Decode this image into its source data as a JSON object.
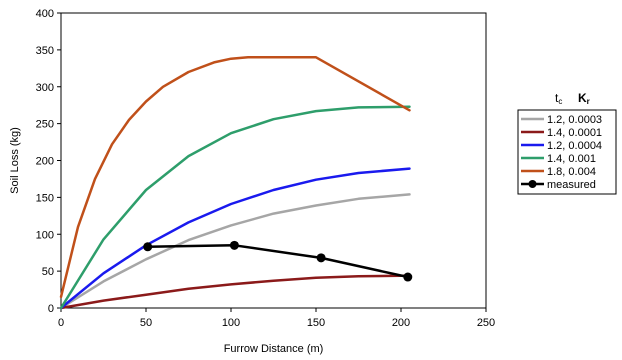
{
  "chart_data": {
    "type": "line",
    "xlabel": "Furrow Distance (m)",
    "ylabel": "Soil Loss (kg)",
    "xlim": [
      0,
      250
    ],
    "ylim": [
      0,
      400
    ],
    "xticks": [
      0,
      50,
      100,
      150,
      200,
      250
    ],
    "yticks": [
      0,
      50,
      100,
      150,
      200,
      250,
      300,
      350,
      400
    ],
    "grid": false,
    "legend_position": "right",
    "legend_header": [
      "t",
      "c",
      "K",
      "r"
    ],
    "series": [
      {
        "name": "1.2, 0.0003",
        "color": "#a6a6a6",
        "x": [
          0,
          25,
          50,
          75,
          100,
          125,
          150,
          175,
          205
        ],
        "y": [
          0,
          36,
          66,
          92,
          112,
          128,
          139,
          148,
          154
        ]
      },
      {
        "name": "1.4, 0.0001",
        "color": "#8b1a1a",
        "x": [
          0,
          25,
          50,
          75,
          100,
          125,
          150,
          175,
          205
        ],
        "y": [
          0,
          10,
          18,
          26,
          32,
          37,
          41,
          43,
          44
        ]
      },
      {
        "name": "1.2, 0.0004",
        "color": "#1a1aee",
        "x": [
          0,
          25,
          50,
          75,
          100,
          125,
          150,
          175,
          205
        ],
        "y": [
          0,
          47,
          85,
          116,
          141,
          160,
          174,
          183,
          189
        ]
      },
      {
        "name": "1.4, 0.001",
        "color": "#2e9e6b",
        "x": [
          0,
          25,
          50,
          75,
          100,
          125,
          150,
          175,
          205
        ],
        "y": [
          0,
          93,
          160,
          206,
          237,
          256,
          267,
          272,
          273
        ]
      },
      {
        "name": "1.8, 0.004",
        "color": "#c0501a",
        "x": [
          0,
          10,
          20,
          30,
          40,
          50,
          60,
          75,
          90,
          100,
          110,
          120,
          130,
          140,
          150,
          205
        ],
        "y": [
          15,
          110,
          175,
          222,
          255,
          280,
          300,
          320,
          333,
          338,
          340,
          340,
          340,
          340,
          340,
          268
        ]
      },
      {
        "name": "measured",
        "color": "#000000",
        "markers": true,
        "x": [
          51,
          102,
          153,
          204
        ],
        "y": [
          83,
          85,
          68,
          42
        ]
      }
    ]
  }
}
